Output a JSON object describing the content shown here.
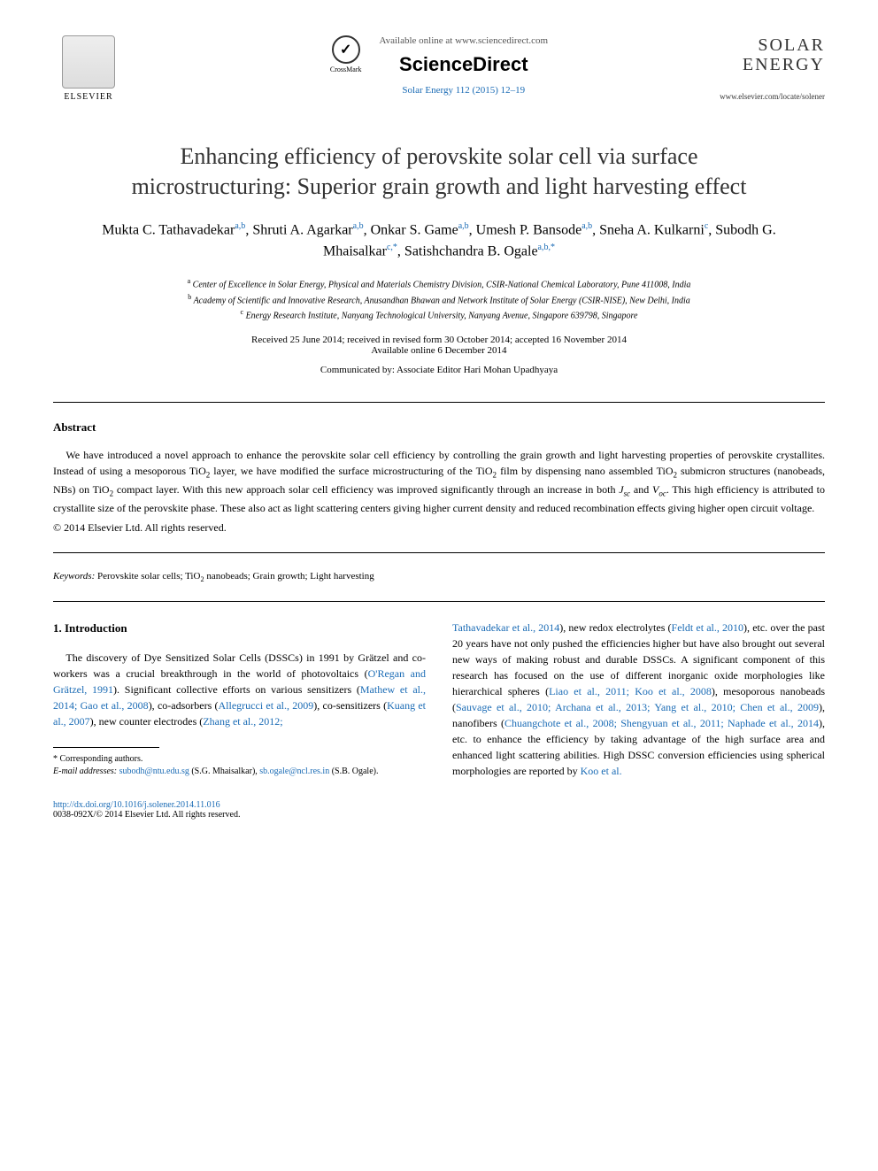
{
  "header": {
    "elsevier_label": "ELSEVIER",
    "crossmark_label": "CrossMark",
    "available_online": "Available online at www.sciencedirect.com",
    "sciencedirect": "ScienceDirect",
    "journal_ref": "Solar Energy 112 (2015) 12–19",
    "journal_logo_line1": "SOLAR",
    "journal_logo_line2": "ENERGY",
    "journal_url": "www.elsevier.com/locate/solener"
  },
  "title": "Enhancing efficiency of perovskite solar cell via surface microstructuring: Superior grain growth and light harvesting effect",
  "authors_html": "Mukta C. Tathavadekar|a,b|, Shruti A. Agarkar|a,b|, Onkar S. Game|a,b|, Umesh P. Bansode|a,b|, Sneha A. Kulkarni|c|, Subodh G. Mhaisalkar|c,*|, Satishchandra B. Ogale|a,b,*|",
  "affiliations": {
    "a": "Center of Excellence in Solar Energy, Physical and Materials Chemistry Division, CSIR-National Chemical Laboratory, Pune 411008, India",
    "b": "Academy of Scientific and Innovative Research, Anusandhan Bhawan and Network Institute of Solar Energy (CSIR-NISE), New Delhi, India",
    "c": "Energy Research Institute, Nanyang Technological University, Nanyang Avenue, Singapore 639798, Singapore"
  },
  "dates": {
    "received_line": "Received 25 June 2014; received in revised form 30 October 2014; accepted 16 November 2014",
    "available_line": "Available online 6 December 2014"
  },
  "communicated": "Communicated by: Associate Editor Hari Mohan Upadhyaya",
  "abstract": {
    "heading": "Abstract",
    "text": "We have introduced a novel approach to enhance the perovskite solar cell efficiency by controlling the grain growth and light harvesting properties of perovskite crystallites. Instead of using a mesoporous TiO₂ layer, we have modified the surface microstructuring of the TiO₂ film by dispensing nano assembled TiO₂ submicron structures (nanobeads, NBs) on TiO₂ compact layer. With this new approach solar cell efficiency was improved significantly through an increase in both Jsc and Voc. This high efficiency is attributed to crystallite size of the perovskite phase. These also act as light scattering centers giving higher current density and reduced recombination effects giving higher open circuit voltage.",
    "copyright": "© 2014 Elsevier Ltd. All rights reserved."
  },
  "keywords": {
    "label": "Keywords:",
    "text": "Perovskite solar cells; TiO₂ nanobeads; Grain growth; Light harvesting"
  },
  "intro": {
    "heading": "1. Introduction",
    "col1_plain_prefix": "The discovery of Dye Sensitized Solar Cells (DSSCs) in 1991 by Grätzel and co-workers was a crucial breakthrough in the world of photovoltaics (",
    "col1_cites": [
      "O'Regan and Grätzel, 1991",
      "Mathew et al., 2014; Gao et al., 2008",
      "Allegrucci et al., 2009",
      "Kuang et al., 2007",
      "Zhang et al., 2012;"
    ],
    "col1_fragments": [
      "). Significant collective efforts on various sensitizers (",
      "), co-adsorbers (",
      "), co-sensitizers (",
      "), new counter electrodes ("
    ],
    "col2_cites": [
      "Tathavadekar et al., 2014",
      "Feldt et al., 2010",
      "Liao et al., 2011; Koo et al., 2008",
      "Sauvage et al., 2010; Archana et al., 2013; Yang et al., 2010; Chen et al., 2009",
      "Chuangchote et al., 2008; Shengyuan et al., 2011; Naphade et al., 2014",
      "Koo et al."
    ],
    "col2_fragments": [
      "), new redox electrolytes (",
      "), etc. over the past 20 years have not only pushed the efficiencies higher but have also brought out several new ways of making robust and durable DSSCs. A significant component of this research has focused on the use of different inorganic oxide morphologies like hierarchical spheres (",
      "), mesoporous nanobeads (",
      "), nanofibers (",
      "), etc. to enhance the efficiency by taking advantage of the high surface area and enhanced light scattering abilities. High DSSC conversion efficiencies using spherical morphologies are reported by "
    ]
  },
  "footnotes": {
    "corresponding": "* Corresponding authors.",
    "email_label": "E-mail addresses:",
    "emails": [
      {
        "addr": "subodh@ntu.edu.sg",
        "who": "(S.G. Mhaisalkar)"
      },
      {
        "addr": "sb.ogale@ncl.res.in",
        "who": "(S.B. Ogale)."
      }
    ]
  },
  "footer": {
    "doi": "http://dx.doi.org/10.1016/j.solener.2014.11.016",
    "issn_copyright": "0038-092X/© 2014 Elsevier Ltd. All rights reserved."
  },
  "colors": {
    "link": "#1a6bb5",
    "text": "#000000",
    "background": "#ffffff"
  },
  "typography": {
    "title_fontsize": 26,
    "body_fontsize": 12,
    "author_fontsize": 16,
    "affil_fontsize": 10,
    "font_family": "Georgia, Times New Roman, serif"
  }
}
